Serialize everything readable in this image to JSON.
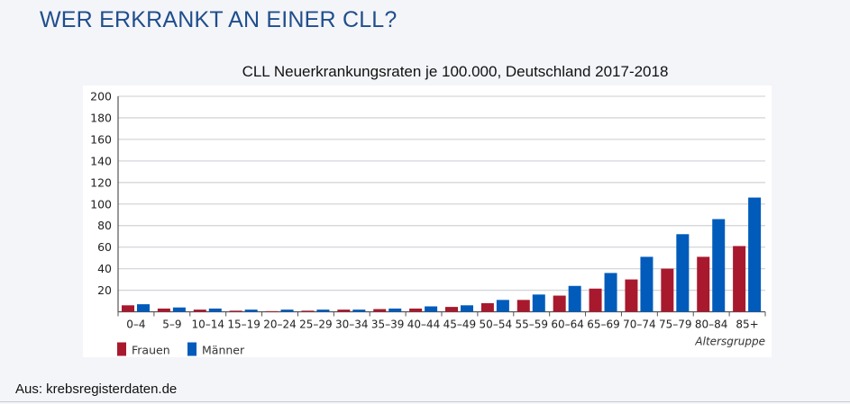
{
  "page": {
    "title": "WER ERKRANKT AN EINER CLL?",
    "source": "Aus: krebsregisterdaten.de"
  },
  "chart_data": {
    "type": "bar",
    "title": "CLL Neuerkrankungsraten je 100.000, Deutschland 2017-2018",
    "xlabel": "Altersgruppe",
    "ylabel": "",
    "ylim": [
      0,
      200
    ],
    "yticks": [
      20,
      40,
      60,
      80,
      100,
      120,
      140,
      160,
      180,
      200
    ],
    "grid": true,
    "legend": "bottom-left",
    "categories": [
      "0–4",
      "5–9",
      "10–14",
      "15–19",
      "20–24",
      "25–29",
      "30–34",
      "35–39",
      "40–44",
      "45–49",
      "50–54",
      "55–59",
      "60–64",
      "65–69",
      "70–74",
      "75–79",
      "80–84",
      "85+"
    ],
    "series": [
      {
        "name": "Frauen",
        "color": "#a8192e",
        "values": [
          6,
          3,
          2,
          1,
          0.5,
          1,
          2,
          2.5,
          3,
          4.5,
          8,
          11,
          15,
          21.5,
          30,
          40,
          51,
          61
        ]
      },
      {
        "name": "Männer",
        "color": "#005bbb",
        "values": [
          7,
          4,
          3,
          2,
          2,
          2,
          2,
          3,
          5,
          6,
          11,
          16,
          24,
          36,
          51,
          72,
          86,
          106
        ]
      }
    ]
  }
}
